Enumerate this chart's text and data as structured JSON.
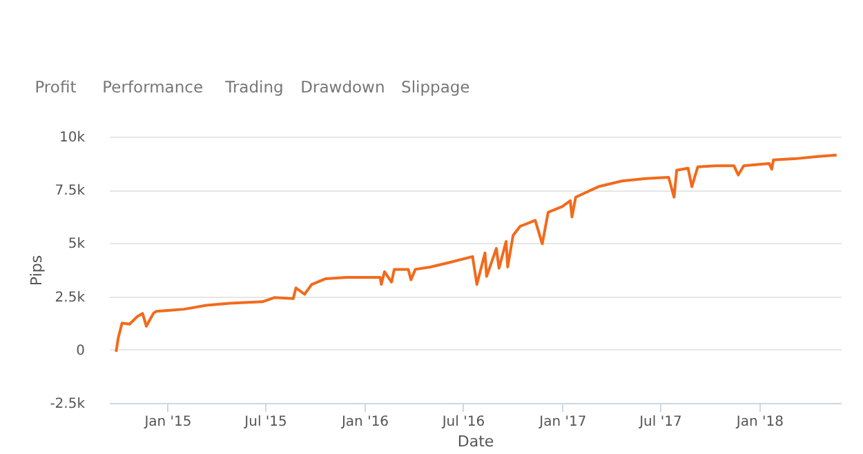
{
  "chart_data": {
    "type": "line",
    "xlabel": "Date",
    "ylabel": "Pips",
    "annotations": [
      "Profit",
      "Performance",
      "Trading",
      "Drawdown",
      "Slippage"
    ],
    "x": [
      "2014-09-28",
      "2014-10-02",
      "2014-10-09",
      "2014-10-23",
      "2014-11-05",
      "2014-11-16",
      "2014-11-23",
      "2014-12-06",
      "2014-12-11",
      "2015-02-01",
      "2015-03-14",
      "2015-04-27",
      "2015-06-26",
      "2015-07-19",
      "2015-08-22",
      "2015-08-27",
      "2015-09-12",
      "2015-09-25",
      "2015-10-21",
      "2015-11-29",
      "2016-01-30",
      "2016-02-01",
      "2016-02-07",
      "2016-02-20",
      "2016-02-25",
      "2016-03-22",
      "2016-03-27",
      "2016-04-04",
      "2016-05-02",
      "2016-06-07",
      "2016-07-19",
      "2016-07-27",
      "2016-08-11",
      "2016-08-14",
      "2016-09-01",
      "2016-09-06",
      "2016-09-19",
      "2016-09-22",
      "2016-10-02",
      "2016-10-15",
      "2016-11-12",
      "2016-11-25",
      "2016-12-06",
      "2017-01-01",
      "2017-01-16",
      "2017-01-19",
      "2017-01-26",
      "2017-03-09",
      "2017-04-22",
      "2017-06-05",
      "2017-07-17",
      "2017-07-27",
      "2017-08-01",
      "2017-08-22",
      "2017-08-29",
      "2017-09-09",
      "2017-10-13",
      "2017-11-15",
      "2017-11-23",
      "2017-12-03",
      "2018-01-19",
      "2018-01-24",
      "2018-01-27",
      "2018-03-07",
      "2018-04-20",
      "2018-05-24"
    ],
    "series": [
      {
        "color": "#f26a1b",
        "values": [
          -100,
          550,
          1250,
          1200,
          1530,
          1700,
          1100,
          1700,
          1800,
          1900,
          2080,
          2180,
          2250,
          2450,
          2400,
          2900,
          2600,
          3060,
          3330,
          3390,
          3390,
          3060,
          3660,
          3170,
          3770,
          3770,
          3280,
          3770,
          3880,
          4100,
          4370,
          3060,
          4540,
          3440,
          4750,
          3820,
          5080,
          3880,
          5360,
          5790,
          6070,
          4970,
          6450,
          6720,
          6990,
          6230,
          7160,
          7650,
          7920,
          8030,
          8090,
          7160,
          8420,
          8520,
          7650,
          8580,
          8630,
          8630,
          8200,
          8630,
          8740,
          8470,
          8910,
          8960,
          9070,
          9130
        ]
      }
    ],
    "xlim": [
      "2014-09-15",
      "2018-06-01"
    ],
    "xticks": [
      {
        "value": "2015-01-01",
        "label": "Jan '15"
      },
      {
        "value": "2015-07-01",
        "label": "Jul '15"
      },
      {
        "value": "2016-01-01",
        "label": "Jan '16"
      },
      {
        "value": "2016-07-01",
        "label": "Jul '16"
      },
      {
        "value": "2017-01-01",
        "label": "Jan '17"
      },
      {
        "value": "2017-07-01",
        "label": "Jul '17"
      },
      {
        "value": "2018-01-01",
        "label": "Jan '18"
      }
    ],
    "ylim": [
      -2500,
      10000
    ],
    "yticks": [
      {
        "value": -2500,
        "label": "-2.5k"
      },
      {
        "value": 0,
        "label": "0"
      },
      {
        "value": 2500,
        "label": "2.5k"
      },
      {
        "value": 5000,
        "label": "5k"
      },
      {
        "value": 7500,
        "label": "7.5k"
      },
      {
        "value": 10000,
        "label": "10k"
      }
    ],
    "grid": "y",
    "legend": false,
    "marker": "none",
    "line_style": "solid"
  }
}
